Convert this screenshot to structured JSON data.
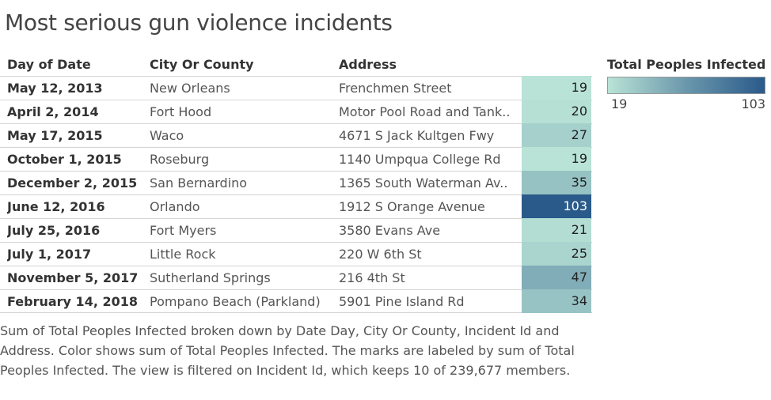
{
  "title": "Most serious gun violence incidents",
  "headers": {
    "date": "Day of Date",
    "city": "City Or County",
    "address": "Address"
  },
  "legend": {
    "title": "Total Peoples Infected",
    "min_label": "19",
    "max_label": "103",
    "color_low": "#b9e3d6",
    "color_high": "#2a5a8a"
  },
  "caption": "Sum of Total Peoples Infected broken down by Date Day, City Or County, Incident Id and Address.  Color shows sum of Total Peoples Infected.  The marks are labeled by sum of Total Peoples Infected. The view is filtered on Incident Id, which keeps 10 of 239,677 members.",
  "chart_data": {
    "type": "table",
    "title": "Most serious gun violence incidents",
    "columns": [
      "Day of Date",
      "City Or County",
      "Address",
      "Total Peoples Infected"
    ],
    "color_range": [
      19,
      103
    ],
    "rows": [
      {
        "date": "May 12, 2013",
        "city": "New Orleans",
        "address": "Frenchmen Street",
        "value": 19
      },
      {
        "date": "April 2, 2014",
        "city": "Fort Hood",
        "address": "Motor Pool Road and Tank..",
        "value": 20
      },
      {
        "date": "May 17, 2015",
        "city": "Waco",
        "address": "4671 S Jack Kultgen Fwy",
        "value": 27
      },
      {
        "date": "October 1, 2015",
        "city": "Roseburg",
        "address": "1140 Umpqua College Rd",
        "value": 19
      },
      {
        "date": "December 2, 2015",
        "city": "San Bernardino",
        "address": "1365 South Waterman Av..",
        "value": 35
      },
      {
        "date": "June 12, 2016",
        "city": "Orlando",
        "address": "1912 S Orange Avenue",
        "value": 103
      },
      {
        "date": "July 25, 2016",
        "city": "Fort Myers",
        "address": "3580 Evans Ave",
        "value": 21
      },
      {
        "date": "July 1, 2017",
        "city": "Little Rock",
        "address": "220 W 6th St",
        "value": 25
      },
      {
        "date": "November 5, 2017",
        "city": "Sutherland Springs",
        "address": "216 4th St",
        "value": 47
      },
      {
        "date": "February 14, 2018",
        "city": "Pompano Beach (Parkland)",
        "address": "5901 Pine Island Rd",
        "value": 34
      }
    ]
  }
}
